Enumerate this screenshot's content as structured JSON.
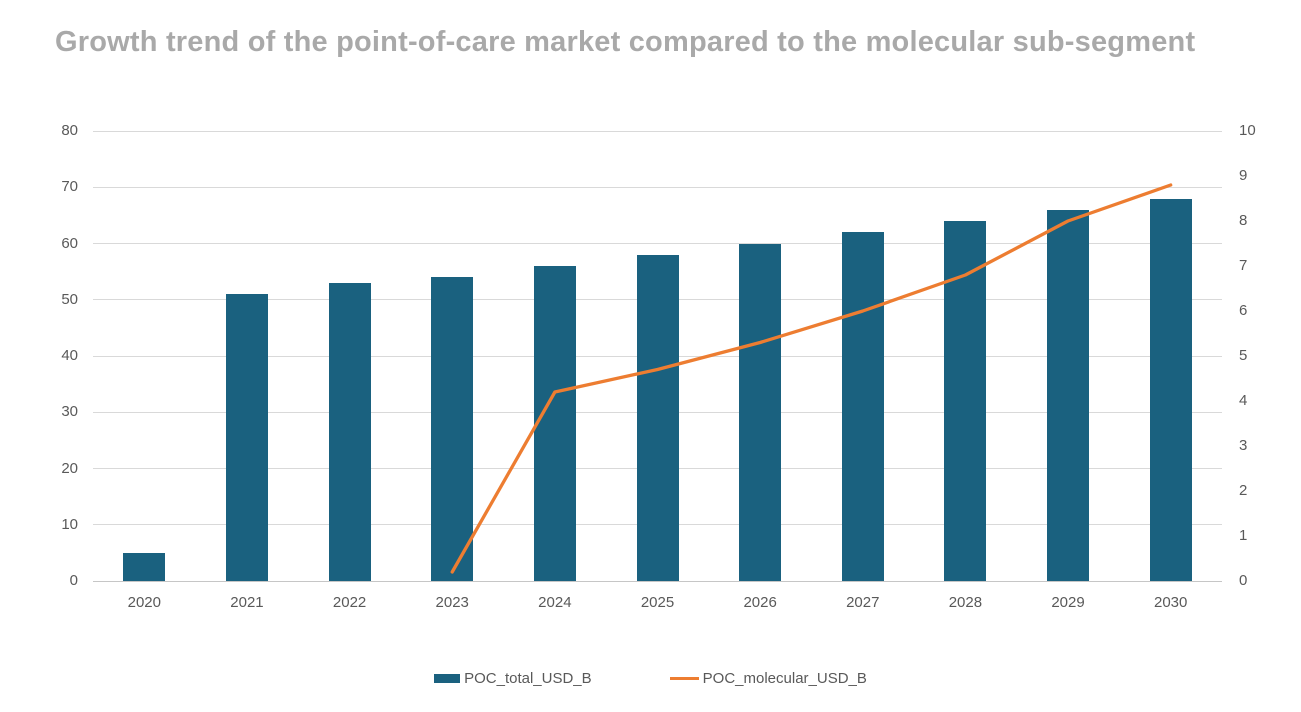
{
  "chart_data": {
    "type": "combo-bar-line",
    "title": "Growth trend of the point-of-care market compared to the molecular sub-segment",
    "categories": [
      "2020",
      "2021",
      "2022",
      "2023",
      "2024",
      "2025",
      "2026",
      "2027",
      "2028",
      "2029",
      "2030"
    ],
    "series": [
      {
        "name": "POC_total_USD_B",
        "type": "bar",
        "axis": "left",
        "color": "#1A617F",
        "values": [
          5,
          51,
          53,
          54,
          56,
          58,
          60,
          62,
          64,
          66,
          68
        ]
      },
      {
        "name": "POC_molecular_USD_B",
        "type": "line",
        "axis": "right",
        "color": "#ED7D31",
        "values": [
          null,
          null,
          null,
          0.2,
          4.2,
          4.7,
          5.3,
          6.0,
          6.8,
          8.0,
          8.8
        ]
      }
    ],
    "left_axis": {
      "min": 0,
      "max": 80,
      "step": 10,
      "ticks": [
        0,
        10,
        20,
        30,
        40,
        50,
        60,
        70,
        80
      ]
    },
    "right_axis": {
      "min": 0,
      "max": 10,
      "step": 1,
      "ticks": [
        0,
        1,
        2,
        3,
        4,
        5,
        6,
        7,
        8,
        9,
        10
      ]
    },
    "grid": true,
    "legend_position": "bottom"
  },
  "styles": {
    "title_color": "#A9A9A9",
    "axis_label_color": "#595959",
    "gridline_color": "#D9D9D9",
    "bar_color": "#1A617F",
    "line_color": "#ED7D31",
    "background": "#ffffff"
  }
}
